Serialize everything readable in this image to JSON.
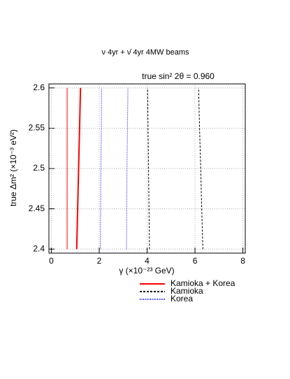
{
  "chart_data": {
    "type": "line",
    "title": "ν 4yr + ν̄ 4yr 4MW beams",
    "annotation": "true sin² 2θ = 0.960",
    "x_label": "γ (×10⁻²³ GeV)",
    "y_label": "true Δm² (×10⁻³ eV²)",
    "xlim": [
      -0.1,
      8.1
    ],
    "ylim": [
      2.395,
      2.605
    ],
    "xticks": [
      0,
      2,
      4,
      6,
      8
    ],
    "yticks": [
      2.4,
      2.45,
      2.5,
      2.55,
      2.6
    ],
    "grid": true,
    "series": [
      {
        "name": "Kamioka + Korea",
        "color": "#ff0000",
        "dash": "solid",
        "curves": [
          {
            "x": [
              0.66,
              0.66,
              0.66,
              0.66,
              0.66
            ],
            "y": [
              2.4,
              2.45,
              2.5,
              2.55,
              2.6
            ]
          },
          {
            "x": [
              1.06,
              1.1,
              1.14,
              1.18,
              1.22
            ],
            "y": [
              2.4,
              2.45,
              2.5,
              2.55,
              2.6
            ]
          }
        ]
      },
      {
        "name": "Kamioka",
        "color": "#000000",
        "dash": "dashed",
        "curves": [
          {
            "x": [
              4.1,
              4.08,
              4.06,
              4.04,
              4.02
            ],
            "y": [
              2.4,
              2.45,
              2.5,
              2.55,
              2.6
            ]
          },
          {
            "x": [
              6.33,
              6.28,
              6.24,
              6.19,
              6.15
            ],
            "y": [
              2.4,
              2.45,
              2.5,
              2.55,
              2.6
            ]
          }
        ]
      },
      {
        "name": "Korea",
        "color": "#0000ff",
        "dash": "dotted",
        "curves": [
          {
            "x": [
              2.05,
              2.06,
              2.07,
              2.09,
              2.1
            ],
            "y": [
              2.4,
              2.45,
              2.5,
              2.55,
              2.6
            ]
          },
          {
            "x": [
              3.14,
              3.15,
              3.16,
              3.18,
              3.2
            ],
            "y": [
              2.4,
              2.45,
              2.5,
              2.55,
              2.6
            ]
          }
        ]
      }
    ]
  }
}
